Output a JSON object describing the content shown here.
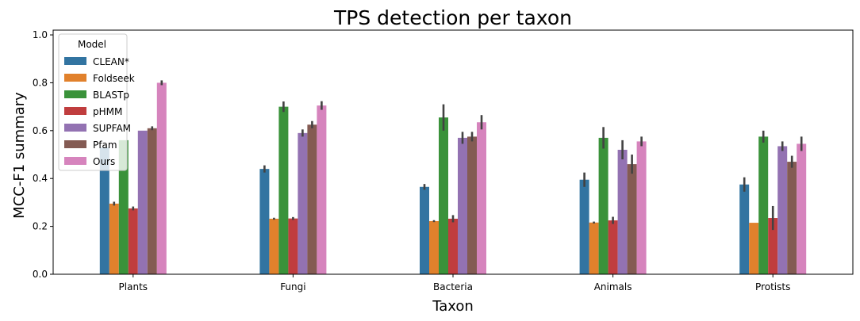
{
  "chart_data": {
    "type": "bar",
    "title": "TPS detection per taxon",
    "xlabel": "Taxon",
    "ylabel": "MCC-F1 summary",
    "ylim": [
      0,
      1.02
    ],
    "yticks": [
      "0.0",
      "0.2",
      "0.4",
      "0.6",
      "0.8",
      "1.0"
    ],
    "grid": false,
    "legend_title": "Model",
    "legend_position": "top-left",
    "categories": [
      "Plants",
      "Fungi",
      "Bacteria",
      "Animals",
      "Protists"
    ],
    "series": [
      {
        "name": "CLEAN*",
        "color": "#3274a1",
        "values": [
          0.53,
          0.44,
          0.365,
          0.395,
          0.375
        ],
        "err": [
          0.0,
          0.015,
          0.012,
          0.03,
          0.03
        ]
      },
      {
        "name": "Foldseek",
        "color": "#e1812c",
        "values": [
          0.295,
          0.232,
          0.222,
          0.216,
          0.215
        ],
        "err": [
          0.008,
          0.004,
          0.004,
          0.004,
          0.0
        ]
      },
      {
        "name": "BLASTp",
        "color": "#3a923a",
        "values": [
          0.56,
          0.7,
          0.655,
          0.57,
          0.575
        ],
        "err": [
          0.0,
          0.022,
          0.055,
          0.045,
          0.025
        ]
      },
      {
        "name": "pHMM",
        "color": "#c03d3e",
        "values": [
          0.275,
          0.233,
          0.232,
          0.225,
          0.235
        ],
        "err": [
          0.008,
          0.006,
          0.015,
          0.015,
          0.05
        ]
      },
      {
        "name": "SUPFAM",
        "color": "#9372b2",
        "values": [
          0.6,
          0.59,
          0.57,
          0.52,
          0.535
        ],
        "err": [
          0.0,
          0.015,
          0.025,
          0.04,
          0.02
        ]
      },
      {
        "name": "Pfam",
        "color": "#845b53",
        "values": [
          0.61,
          0.625,
          0.575,
          0.46,
          0.47
        ],
        "err": [
          0.008,
          0.015,
          0.02,
          0.04,
          0.025
        ]
      },
      {
        "name": "Ours",
        "color": "#d684bd",
        "values": [
          0.8,
          0.705,
          0.635,
          0.555,
          0.545
        ],
        "err": [
          0.01,
          0.018,
          0.03,
          0.02,
          0.03
        ]
      }
    ]
  }
}
